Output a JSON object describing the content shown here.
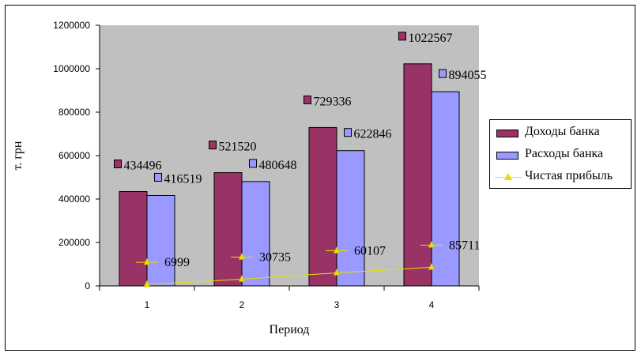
{
  "chart_data": {
    "type": "bar",
    "categories": [
      "1",
      "2",
      "3",
      "4"
    ],
    "series": [
      {
        "name": "Доходы банка",
        "type": "bar",
        "color": "#993366",
        "values": [
          434496,
          521520,
          729336,
          1022567
        ]
      },
      {
        "name": "Расходы банка",
        "type": "bar",
        "color": "#9999ff",
        "values": [
          416519,
          480648,
          622846,
          894055
        ]
      },
      {
        "name": "Чистая прибыль",
        "type": "line",
        "color": "#e8e000",
        "values": [
          6999,
          30735,
          60107,
          85711
        ]
      }
    ],
    "xlabel": "Период",
    "ylabel": "т. грн",
    "ylim": [
      0,
      1200000
    ],
    "yticks": [
      "0",
      "200000",
      "400000",
      "600000",
      "800000",
      "1000000",
      "1200000"
    ],
    "plot_background": "#c0c0c0",
    "grid": false,
    "legend_position": "right"
  }
}
